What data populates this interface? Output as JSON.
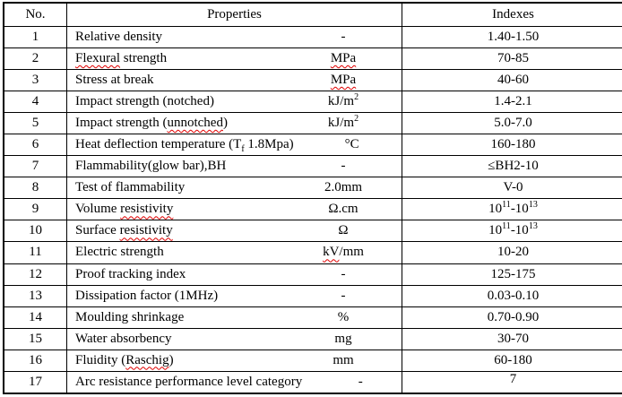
{
  "table": {
    "headers": {
      "no": "No.",
      "properties": "Properties",
      "indexes": "Indexes"
    },
    "rows": [
      {
        "no": "1",
        "name": [
          {
            "t": "Relative density"
          }
        ],
        "unit": [
          {
            "t": "-"
          }
        ],
        "index": [
          {
            "t": "1.40-1.50"
          }
        ]
      },
      {
        "no": "2",
        "name": [
          {
            "t": "Flexural",
            "sq": true
          },
          {
            "t": " strength"
          }
        ],
        "unit": [
          {
            "t": "MPa",
            "sq": true
          }
        ],
        "index": [
          {
            "t": "70-85"
          }
        ]
      },
      {
        "no": "3",
        "name": [
          {
            "t": "Stress at break"
          }
        ],
        "unit": [
          {
            "t": "MPa",
            "sq": true
          }
        ],
        "index": [
          {
            "t": "40-60"
          }
        ]
      },
      {
        "no": "4",
        "name": [
          {
            "t": "Impact strength (notched)"
          }
        ],
        "unit": [
          {
            "t": "kJ/m"
          },
          {
            "t": "2",
            "sup": true
          }
        ],
        "index": [
          {
            "t": "1.4-2.1"
          }
        ]
      },
      {
        "no": "5",
        "name": [
          {
            "t": "Impact strength ("
          },
          {
            "t": "unnotched",
            "sq": true
          },
          {
            "t": ")"
          }
        ],
        "unit": [
          {
            "t": "kJ/m"
          },
          {
            "t": "2",
            "sup": true
          }
        ],
        "index": [
          {
            "t": "5.0-7.0"
          }
        ]
      },
      {
        "no": "6",
        "name": [
          {
            "t": "Heat deflection temperature (T"
          },
          {
            "t": "f",
            "sub": true,
            "sq": true
          },
          {
            "t": " 1.8Mpa)"
          }
        ],
        "unit": [
          {
            "t": "°C"
          }
        ],
        "index": [
          {
            "t": "160-180"
          }
        ]
      },
      {
        "no": "7",
        "name": [
          {
            "t": "Flammability(glow bar),BH"
          }
        ],
        "unit": [
          {
            "t": "-"
          }
        ],
        "index": [
          {
            "t": "≤BH2-10"
          }
        ]
      },
      {
        "no": "8",
        "name": [
          {
            "t": "Test of flammability"
          }
        ],
        "unit": [
          {
            "t": "2.0mm"
          }
        ],
        "index": [
          {
            "t": "V-0"
          }
        ]
      },
      {
        "no": "9",
        "name": [
          {
            "t": "Volume "
          },
          {
            "t": "resistivity",
            "sq": true
          }
        ],
        "unit": [
          {
            "t": "Ω.cm"
          }
        ],
        "index": [
          {
            "t": "10"
          },
          {
            "t": "11",
            "sup": true
          },
          {
            "t": "-10"
          },
          {
            "t": "13",
            "sup": true
          }
        ]
      },
      {
        "no": "10",
        "name": [
          {
            "t": "Surface "
          },
          {
            "t": "resistivity",
            "sq": true
          }
        ],
        "unit": [
          {
            "t": "Ω"
          }
        ],
        "index": [
          {
            "t": "10"
          },
          {
            "t": "11",
            "sup": true
          },
          {
            "t": "-10"
          },
          {
            "t": "13",
            "sup": true
          }
        ]
      },
      {
        "no": "11",
        "name": [
          {
            "t": "Electric strength"
          }
        ],
        "unit": [
          {
            "t": "kV",
            "sq": true
          },
          {
            "t": "/mm"
          }
        ],
        "index": [
          {
            "t": "10-20"
          }
        ]
      },
      {
        "no": "12",
        "name": [
          {
            "t": "Proof tracking index"
          }
        ],
        "unit": [
          {
            "t": "-"
          }
        ],
        "index": [
          {
            "t": "125-175"
          }
        ]
      },
      {
        "no": "13",
        "name": [
          {
            "t": "Dissipation factor (1MHz)"
          }
        ],
        "unit": [
          {
            "t": "-"
          }
        ],
        "index": [
          {
            "t": "0.03-0.10"
          }
        ]
      },
      {
        "no": "14",
        "name": [
          {
            "t": "Moulding shrinkage"
          }
        ],
        "unit": [
          {
            "t": "%"
          }
        ],
        "index": [
          {
            "t": "0.70-0.90"
          }
        ]
      },
      {
        "no": "15",
        "name": [
          {
            "t": "Water absorbency"
          }
        ],
        "unit": [
          {
            "t": "mg"
          }
        ],
        "index": [
          {
            "t": "30-70"
          }
        ]
      },
      {
        "no": "16",
        "name": [
          {
            "t": "Fluidity ("
          },
          {
            "t": "Raschig",
            "sq": true
          },
          {
            "t": ")"
          }
        ],
        "unit": [
          {
            "t": "mm"
          }
        ],
        "index": [
          {
            "t": "60-180"
          }
        ]
      },
      {
        "no": "17",
        "name": [
          {
            "t": "Arc resistance performance level category"
          }
        ],
        "unit": [
          {
            "t": "-"
          }
        ],
        "index": [
          {
            "t": "7"
          }
        ]
      }
    ]
  },
  "colors": {
    "border": "#000000",
    "text": "#000000",
    "squiggle": "#e00000",
    "background": "#ffffff"
  }
}
